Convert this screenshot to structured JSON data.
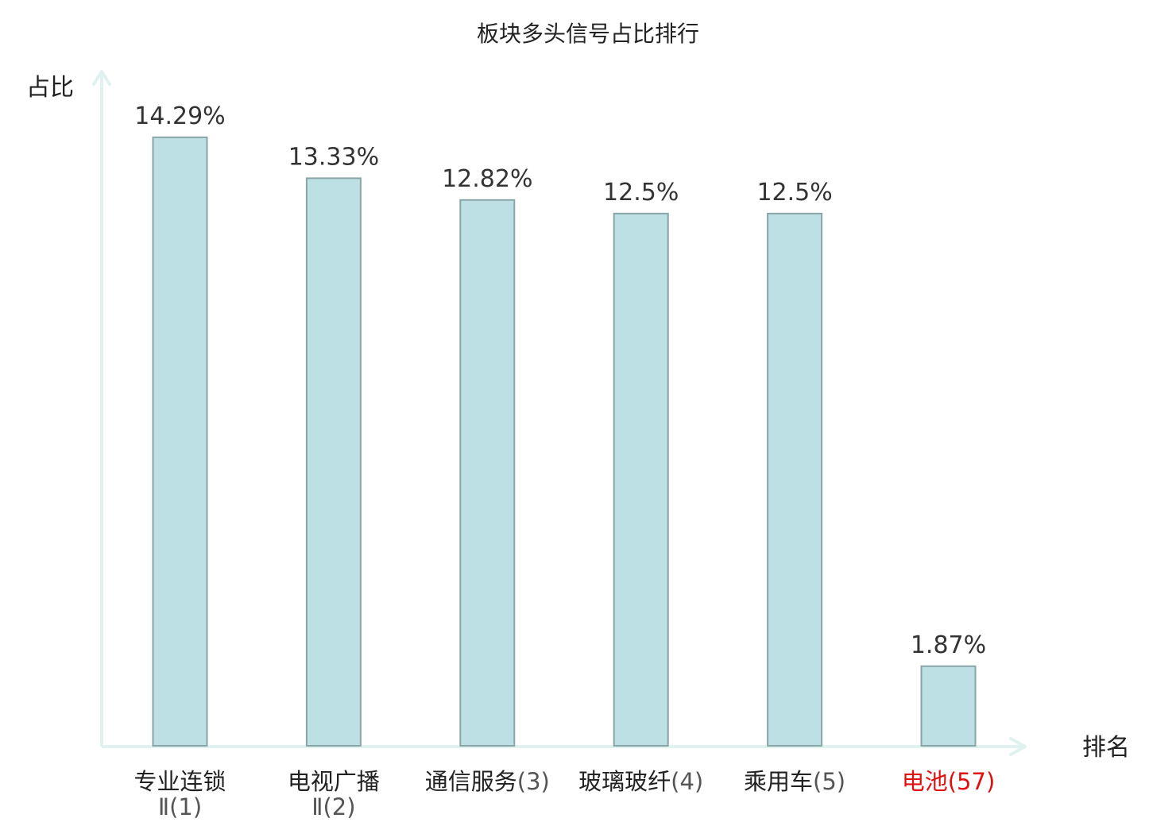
{
  "chart_data": {
    "type": "bar",
    "title": "板块多头信号占比排行",
    "xlabel": "排名",
    "ylabel": "占比",
    "categories": [
      {
        "name": "专业连锁",
        "suffix": "Ⅱ(1)"
      },
      {
        "name": "电视广播",
        "suffix": "Ⅱ(2)"
      },
      {
        "name": "通信服务",
        "suffix": "(3)"
      },
      {
        "name": "玻璃玻纤",
        "suffix": "(4)"
      },
      {
        "name": "乘用车",
        "suffix": "(5)"
      },
      {
        "name": "电池",
        "suffix": "(57)"
      }
    ],
    "values": [
      14.29,
      13.33,
      12.82,
      12.5,
      12.5,
      1.87
    ],
    "value_labels": [
      "14.29%",
      "13.33%",
      "12.82%",
      "12.5%",
      "12.5%",
      "1.87%"
    ],
    "highlight_index": 5,
    "ylim": [
      0,
      15.8
    ],
    "grid": false,
    "legend": "none"
  },
  "colors": {
    "bar_fill": "#bce0e3",
    "bar_stroke": "#8aa5a8",
    "axis": "#dff2ef",
    "highlight_text": "#e01010",
    "text": "#222222"
  }
}
